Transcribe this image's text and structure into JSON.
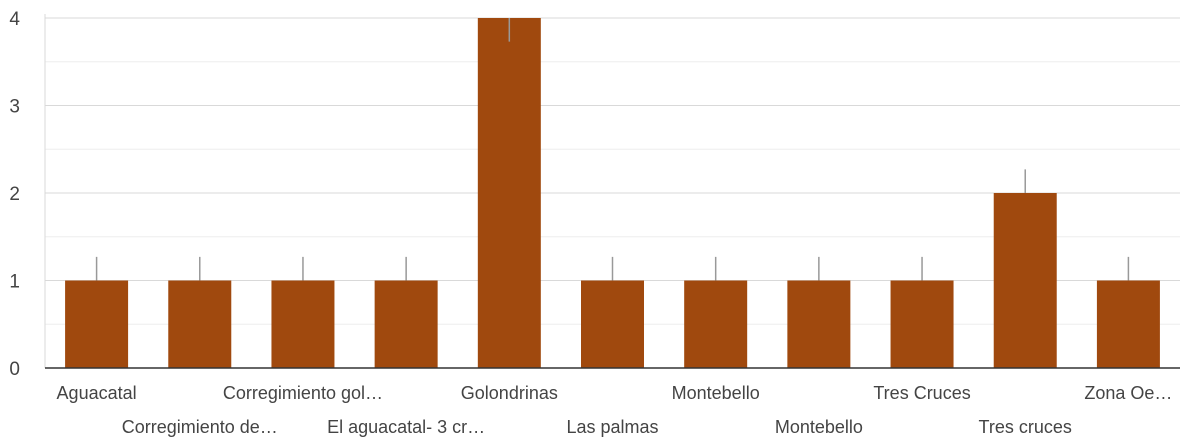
{
  "chart_data": {
    "type": "bar",
    "title": "",
    "xlabel": "",
    "ylabel": "",
    "ylim": [
      0,
      4
    ],
    "y_ticks": [
      0,
      1,
      2,
      3,
      4
    ],
    "grid": true,
    "minor_grid": true,
    "error_bars": true,
    "colors": {
      "bar": "#A0490E",
      "error_bar": "#999999",
      "grid_major": "#d9d9d9",
      "grid_minor": "#eeeeee",
      "axis": "#333333"
    },
    "categories": [
      "Aguacatal",
      "Corregimiento de…",
      "Corregimiento gol…",
      "El aguacatal- 3 cr…",
      "Golondrinas",
      "Las palmas",
      "Montebello",
      "Montebello",
      "Tres Cruces",
      "Tres cruces",
      "Zona Oe…"
    ],
    "values": [
      1,
      1,
      1,
      1,
      4,
      1,
      1,
      1,
      1,
      2,
      1
    ],
    "error_upper": [
      0.27,
      0.27,
      0.27,
      0.27,
      -0.27,
      0.27,
      0.27,
      0.27,
      0.27,
      0.27,
      0.27
    ]
  }
}
